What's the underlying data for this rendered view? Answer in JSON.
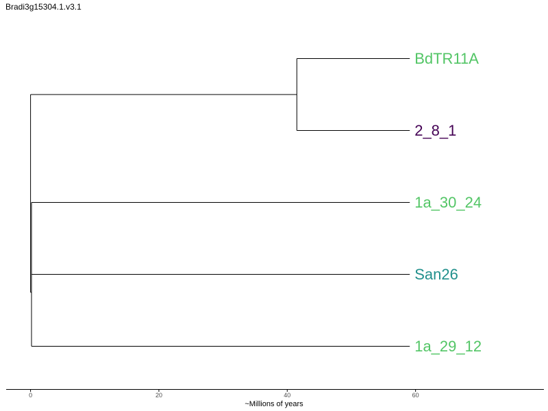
{
  "title": "Bradi3g15304.1.v3.1",
  "chart_data": {
    "type": "phylogenetic-tree",
    "xlabel": "~Millions of years",
    "ticks": [
      0,
      20,
      40,
      60
    ],
    "xlim": [
      -3.8,
      80
    ],
    "leaves": [
      {
        "name": "BdTR11A",
        "x": 59.1,
        "color": "#52c565"
      },
      {
        "name": "2_8_1",
        "x": 59.1,
        "color": "#440154"
      },
      {
        "name": "1a_30_24",
        "x": 59.1,
        "color": "#52c565"
      },
      {
        "name": "San26",
        "x": 59.1,
        "color": "#21908c"
      },
      {
        "name": "1a_29_12",
        "x": 59.1,
        "color": "#52c565"
      }
    ],
    "nodes": {
      "root": {
        "x": 0,
        "children": [
          "clade_a",
          "clade_b"
        ]
      },
      "clade_a": {
        "x": 41.5,
        "children": [
          "BdTR11A",
          "2_8_1"
        ]
      },
      "clade_b": {
        "x": 0.15,
        "children": [
          "clade_c",
          "1a_29_12"
        ]
      },
      "clade_c": {
        "x": 0.15,
        "children": [
          "1a_30_24",
          "San26"
        ]
      }
    }
  }
}
